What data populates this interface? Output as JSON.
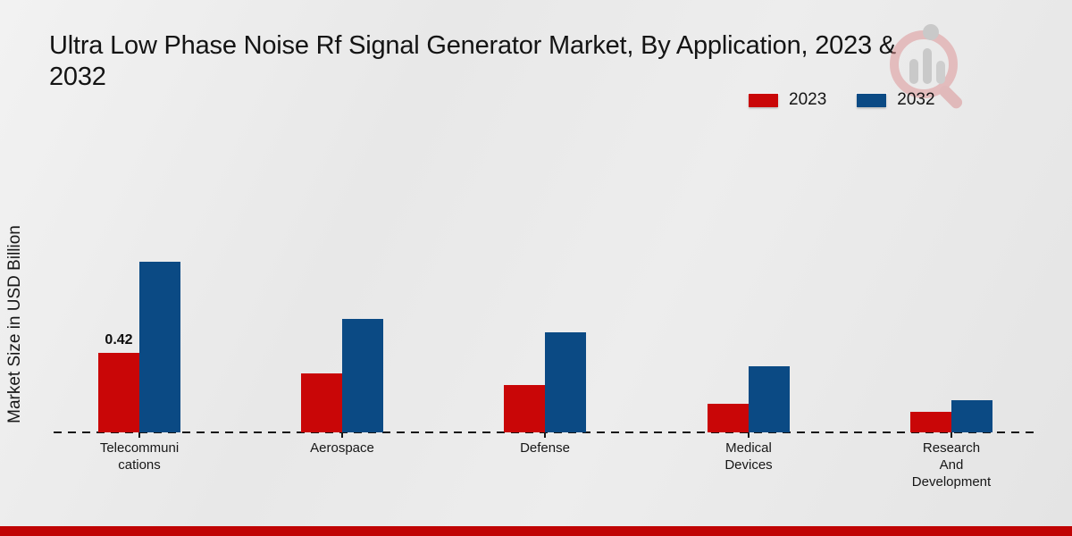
{
  "title": "Ultra Low Phase Noise Rf Signal Generator Market, By Application, 2023 & 2032",
  "ylabel": "Market Size in USD Billion",
  "legend": {
    "items": [
      {
        "label": "2023",
        "color": "#c90607"
      },
      {
        "label": "2032",
        "color": "#0b4a84"
      }
    ]
  },
  "watermark_icon": "market-research-magnifier-logo",
  "footer": {
    "bar_color": "#c00404"
  },
  "axis": {
    "baseline_style": "dashed",
    "baseline_color": "#161616"
  },
  "chart_data": {
    "type": "bar",
    "title": "Ultra Low Phase Noise Rf Signal Generator Market, By Application, 2023 & 2032",
    "xlabel": "",
    "ylabel": "Market Size in USD Billion",
    "categories": [
      "Telecommunications",
      "Aerospace",
      "Defense",
      "Medical Devices",
      "Research And Development"
    ],
    "category_label_lines": [
      [
        "Telecommuni",
        "cations"
      ],
      [
        "Aerospace"
      ],
      [
        "Defense"
      ],
      [
        "Medical",
        "Devices"
      ],
      [
        "Research",
        "And",
        "Development"
      ]
    ],
    "series": [
      {
        "name": "2023",
        "color": "#c90607",
        "values": [
          0.42,
          0.31,
          0.25,
          0.15,
          0.11
        ]
      },
      {
        "name": "2032",
        "color": "#0b4a84",
        "values": [
          0.9,
          0.6,
          0.53,
          0.35,
          0.17
        ]
      }
    ],
    "annotations": [
      {
        "series": "2023",
        "category_index": 0,
        "text": "0.42"
      }
    ],
    "ylim": [
      0,
      1.0
    ],
    "grid": false,
    "legend_position": "top-right",
    "baseline": "dashed"
  }
}
